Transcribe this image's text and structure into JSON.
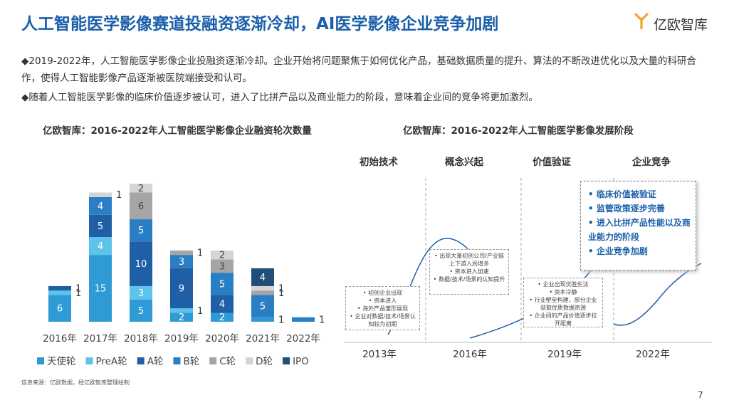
{
  "header": {
    "title": "人工智能医学影像赛道投融资逐渐冷却，AI医学影像企业竞争加剧",
    "logo": "亿欧智库"
  },
  "bullets": [
    "◆2019-2022年，人工智能医学影像企业投融资逐渐冷却。企业开始将问题聚焦于如何优化产品，基础数据质量的提升、算法的不断改进优化以及大量的科研合作，使得人工智能影像产品逐渐被医院端接受和认可。",
    "◆随着人工智能医学影像的临床价值逐步被认可，进入了比拼产品以及商业能力的阶段，意味着企业间的竞争将更加激烈。"
  ],
  "chart_data": {
    "type": "stacked_bar",
    "title": "亿欧智库：2016-2022年人工智能医学影像企业融资轮次数量",
    "categories": [
      "2016年",
      "2017年",
      "2018年",
      "2019年",
      "2020年",
      "2021年",
      "2022年"
    ],
    "series": [
      {
        "name": "天使轮",
        "color": "#2e9bd6",
        "values": [
          6,
          15,
          5,
          2,
          2,
          1,
          null
        ]
      },
      {
        "name": "PreA轮",
        "color": "#5cc3ea",
        "values": [
          1,
          4,
          3,
          1,
          null,
          null,
          null
        ]
      },
      {
        "name": "A轮",
        "color": "#1f5fa6",
        "values": [
          1,
          5,
          10,
          9,
          4,
          null,
          null
        ]
      },
      {
        "name": "B轮",
        "color": "#2a7fc4",
        "values": [
          null,
          4,
          5,
          3,
          5,
          5,
          1
        ]
      },
      {
        "name": "C轮",
        "color": "#a5a5a5",
        "values": [
          null,
          null,
          6,
          1,
          3,
          1,
          null
        ]
      },
      {
        "name": "D轮",
        "color": "#d5d5d5",
        "values": [
          null,
          1,
          2,
          null,
          2,
          1,
          null
        ]
      },
      {
        "name": "IPO",
        "color": "#1f4e79",
        "values": [
          null,
          null,
          null,
          null,
          null,
          4,
          null
        ]
      }
    ],
    "legend": "bottom"
  },
  "diagram": {
    "title": "亿欧智库：2016-2022年人工智能医学影像发展阶段",
    "stages": [
      "初始技术",
      "概念兴起",
      "价值验证",
      "企业竞争"
    ],
    "years": [
      "2013年",
      "2016年",
      "2019年",
      "2022年"
    ],
    "boxes": [
      [
        "初创企业出现",
        "资本进入",
        "海外产品雏形展现",
        "企业对数据/技术/场景认知较为初期"
      ],
      [
        "出现大量初创公司/产业链上下游入局增多",
        "资本进入加速",
        "数据/技术/场景的认知提升"
      ],
      [
        "企业出现优胜劣汰",
        "资本冷静",
        "行业壁垒构建，部分企业获取优质数据资源",
        "企业间的产品价值逐步拉开距离"
      ],
      [
        "临床价值被验证",
        "监管政策逐步完善",
        "进入比拼产品性能以及商业能力的阶段",
        "企业竞争加剧"
      ]
    ]
  },
  "footer": {
    "source": "信息来源：亿欧数据，经亿欧智库整理绘制",
    "page": "7"
  }
}
